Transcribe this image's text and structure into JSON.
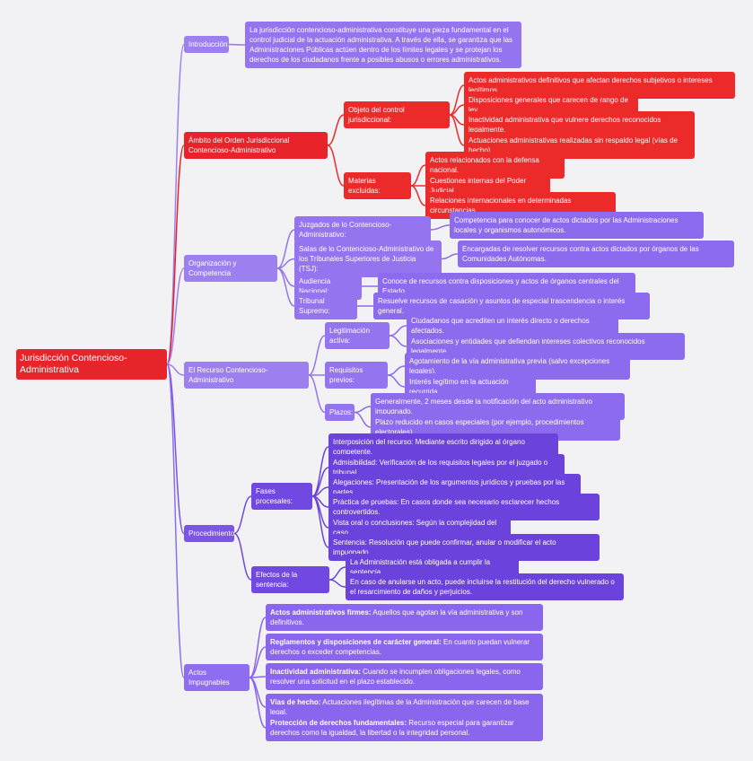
{
  "root": {
    "label": "Jurisdicción Contencioso-Administrativa",
    "children": [
      {
        "label": "Introducción",
        "children": [
          {
            "label": "La jurisdicción contencioso-administrativa constituye una pieza fundamental en el control judicial de la actuación administrativa. A través de ella, se garantiza que las Administraciones Públicas actúen dentro de los límites legales y se protejan los derechos de los ciudadanos frente a posibles abusos o errores administrativos."
          }
        ]
      },
      {
        "label": "Ámbito del Orden Jurisdiccional Contencioso-Administrativo",
        "children": [
          {
            "label": "Objeto del control jurisdiccional:",
            "children": [
              {
                "label": "Actos administrativos definitivos que afectan derechos subjetivos o intereses legítimos."
              },
              {
                "label": "Disposiciones generales que carecen de rango de ley."
              },
              {
                "label": "Inactividad administrativa que vulnere derechos reconocidos legalmente."
              },
              {
                "label": "Actuaciones administrativas realizadas sin respaldo legal (vías de hecho)."
              }
            ]
          },
          {
            "label": "Materias excluidas:",
            "children": [
              {
                "label": "Actos relacionados con la defensa nacional."
              },
              {
                "label": "Cuestiones internas del Poder Judicial."
              },
              {
                "label": "Relaciones internacionales en determinadas circunstancias."
              }
            ]
          }
        ]
      },
      {
        "label": "Organización y Competencia",
        "children": [
          {
            "label": "Juzgados de lo Contencioso-Administrativo:",
            "children": [
              {
                "label": "Competencia para conocer de actos dictados por las Administraciones locales y organismos autonómicos."
              }
            ]
          },
          {
            "label": "Salas de lo Contencioso-Administrativo de los Tribunales Superiores de Justicia (TSJ):",
            "children": [
              {
                "label": "Encargadas de resolver recursos contra actos dictados por órganos de las Comunidades Autónomas."
              }
            ]
          },
          {
            "label": "Audiencia Nacional:",
            "children": [
              {
                "label": "Conoce de recursos contra disposiciones y actos de órganos centrales del Estado."
              }
            ]
          },
          {
            "label": "Tribunal Supremo:",
            "children": [
              {
                "label": "Resuelve recursos de casación y asuntos de especial trascendencia o interés general."
              }
            ]
          }
        ]
      },
      {
        "label": "El Recurso Contencioso-Administrativo",
        "children": [
          {
            "label": "Legitimación activa:",
            "children": [
              {
                "label": "Ciudadanos que acrediten un interés directo o derechos afectados."
              },
              {
                "label": "Asociaciones y entidades que defiendan intereses colectivos reconocidos legalmente."
              }
            ]
          },
          {
            "label": "Requisitos previos:",
            "children": [
              {
                "label": "Agotamiento de la vía administrativa previa (salvo excepciones legales)."
              },
              {
                "label": "Interés legítimo en la actuación recurrida."
              }
            ]
          },
          {
            "label": "Plazos:",
            "children": [
              {
                "label": "Generalmente, 2 meses desde la notificación del acto administrativo impugnado."
              },
              {
                "label": "Plazo reducido en casos especiales (por ejemplo, procedimientos electorales)."
              }
            ]
          }
        ]
      },
      {
        "label": "Procedimiento",
        "children": [
          {
            "label": "Fases procesales:",
            "children": [
              {
                "label": "Interposición del recurso: Mediante escrito dirigido al órgano competente."
              },
              {
                "label": "Admisibilidad: Verificación de los requisitos legales por el juzgado o tribunal."
              },
              {
                "label": "Alegaciones: Presentación de los argumentos jurídicos y pruebas por las partes."
              },
              {
                "label": "Práctica de pruebas: En casos donde sea necesario esclarecer hechos controvertidos."
              },
              {
                "label": "Vista oral o conclusiones: Según la complejidad del caso."
              },
              {
                "label": "Sentencia: Resolución que puede confirmar, anular o modificar el acto impugnado."
              }
            ]
          },
          {
            "label": "Efectos de la sentencia:",
            "children": [
              {
                "label": "La Administración está obligada a cumplir la sentencia."
              },
              {
                "label": "En caso de anularse un acto, puede incluirse la restitución del derecho vulnerado o el resarcimiento de daños y perjuicios."
              }
            ]
          }
        ]
      },
      {
        "label": "Actos Impugnables",
        "children": [
          {
            "bold": "Actos administrativos firmes:",
            "label": "Aquellos que agotan la vía administrativa y son definitivos."
          },
          {
            "bold": "Reglamentos y disposiciones de carácter general:",
            "label": "En cuanto puedan vulnerar derechos o exceder competencias."
          },
          {
            "bold": "Inactividad administrativa:",
            "label": "Cuando se incumplen obligaciones legales, como resolver una solicitud en el plazo establecido."
          },
          {
            "bold": "Vías de hecho:",
            "label": "Actuaciones ilegítimas de la Administración que carecen de base legal."
          },
          {
            "bold": "Protección de derechos fundamentales:",
            "label": "Recurso especial para garantizar derechos como la igualdad, la libertad o la integridad personal."
          }
        ]
      }
    ]
  }
}
